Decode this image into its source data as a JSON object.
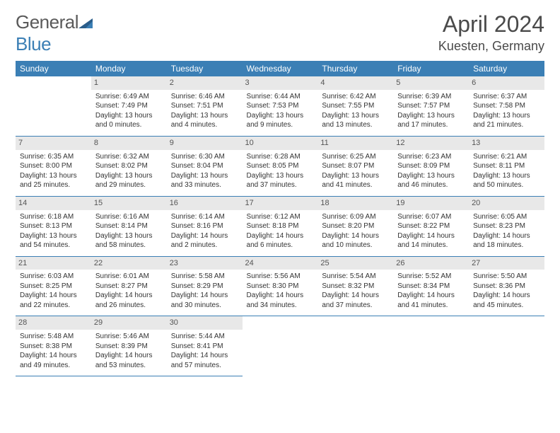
{
  "logo": {
    "text_general": "General",
    "text_blue": "Blue"
  },
  "title": "April 2024",
  "location": "Kuesten, Germany",
  "weekday_header_bg": "#3b7fb5",
  "weekday_header_fg": "#ffffff",
  "daynum_bg": "#e8e8e8",
  "border_color": "#3b7fb5",
  "weekdays": [
    "Sunday",
    "Monday",
    "Tuesday",
    "Wednesday",
    "Thursday",
    "Friday",
    "Saturday"
  ],
  "weeks": [
    [
      {
        "blank": true
      },
      {
        "n": "1",
        "sr": "6:49 AM",
        "ss": "7:49 PM",
        "dl": "13 hours and 0 minutes."
      },
      {
        "n": "2",
        "sr": "6:46 AM",
        "ss": "7:51 PM",
        "dl": "13 hours and 4 minutes."
      },
      {
        "n": "3",
        "sr": "6:44 AM",
        "ss": "7:53 PM",
        "dl": "13 hours and 9 minutes."
      },
      {
        "n": "4",
        "sr": "6:42 AM",
        "ss": "7:55 PM",
        "dl": "13 hours and 13 minutes."
      },
      {
        "n": "5",
        "sr": "6:39 AM",
        "ss": "7:57 PM",
        "dl": "13 hours and 17 minutes."
      },
      {
        "n": "6",
        "sr": "6:37 AM",
        "ss": "7:58 PM",
        "dl": "13 hours and 21 minutes."
      }
    ],
    [
      {
        "n": "7",
        "sr": "6:35 AM",
        "ss": "8:00 PM",
        "dl": "13 hours and 25 minutes."
      },
      {
        "n": "8",
        "sr": "6:32 AM",
        "ss": "8:02 PM",
        "dl": "13 hours and 29 minutes."
      },
      {
        "n": "9",
        "sr": "6:30 AM",
        "ss": "8:04 PM",
        "dl": "13 hours and 33 minutes."
      },
      {
        "n": "10",
        "sr": "6:28 AM",
        "ss": "8:05 PM",
        "dl": "13 hours and 37 minutes."
      },
      {
        "n": "11",
        "sr": "6:25 AM",
        "ss": "8:07 PM",
        "dl": "13 hours and 41 minutes."
      },
      {
        "n": "12",
        "sr": "6:23 AM",
        "ss": "8:09 PM",
        "dl": "13 hours and 46 minutes."
      },
      {
        "n": "13",
        "sr": "6:21 AM",
        "ss": "8:11 PM",
        "dl": "13 hours and 50 minutes."
      }
    ],
    [
      {
        "n": "14",
        "sr": "6:18 AM",
        "ss": "8:13 PM",
        "dl": "13 hours and 54 minutes."
      },
      {
        "n": "15",
        "sr": "6:16 AM",
        "ss": "8:14 PM",
        "dl": "13 hours and 58 minutes."
      },
      {
        "n": "16",
        "sr": "6:14 AM",
        "ss": "8:16 PM",
        "dl": "14 hours and 2 minutes."
      },
      {
        "n": "17",
        "sr": "6:12 AM",
        "ss": "8:18 PM",
        "dl": "14 hours and 6 minutes."
      },
      {
        "n": "18",
        "sr": "6:09 AM",
        "ss": "8:20 PM",
        "dl": "14 hours and 10 minutes."
      },
      {
        "n": "19",
        "sr": "6:07 AM",
        "ss": "8:22 PM",
        "dl": "14 hours and 14 minutes."
      },
      {
        "n": "20",
        "sr": "6:05 AM",
        "ss": "8:23 PM",
        "dl": "14 hours and 18 minutes."
      }
    ],
    [
      {
        "n": "21",
        "sr": "6:03 AM",
        "ss": "8:25 PM",
        "dl": "14 hours and 22 minutes."
      },
      {
        "n": "22",
        "sr": "6:01 AM",
        "ss": "8:27 PM",
        "dl": "14 hours and 26 minutes."
      },
      {
        "n": "23",
        "sr": "5:58 AM",
        "ss": "8:29 PM",
        "dl": "14 hours and 30 minutes."
      },
      {
        "n": "24",
        "sr": "5:56 AM",
        "ss": "8:30 PM",
        "dl": "14 hours and 34 minutes."
      },
      {
        "n": "25",
        "sr": "5:54 AM",
        "ss": "8:32 PM",
        "dl": "14 hours and 37 minutes."
      },
      {
        "n": "26",
        "sr": "5:52 AM",
        "ss": "8:34 PM",
        "dl": "14 hours and 41 minutes."
      },
      {
        "n": "27",
        "sr": "5:50 AM",
        "ss": "8:36 PM",
        "dl": "14 hours and 45 minutes."
      }
    ],
    [
      {
        "n": "28",
        "sr": "5:48 AM",
        "ss": "8:38 PM",
        "dl": "14 hours and 49 minutes."
      },
      {
        "n": "29",
        "sr": "5:46 AM",
        "ss": "8:39 PM",
        "dl": "14 hours and 53 minutes."
      },
      {
        "n": "30",
        "sr": "5:44 AM",
        "ss": "8:41 PM",
        "dl": "14 hours and 57 minutes."
      },
      {
        "blank": true
      },
      {
        "blank": true
      },
      {
        "blank": true
      },
      {
        "blank": true
      }
    ]
  ],
  "labels": {
    "sunrise": "Sunrise: ",
    "sunset": "Sunset: ",
    "daylight": "Daylight: "
  }
}
